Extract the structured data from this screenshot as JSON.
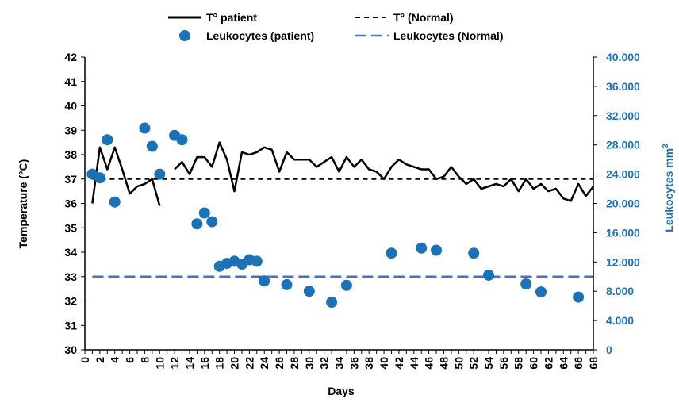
{
  "colors": {
    "patient_temp_line": "#000000",
    "normal_temp_line": "#000000",
    "leukocytes_patient": "#1a72b8",
    "leukocytes_normal": "#4472c4",
    "right_axis": "#1a72b8"
  },
  "chart_data": {
    "type": "line",
    "xlabel": "Days",
    "ylabel_left": "Temperature (°C)",
    "ylabel_right_main": "Leukocytes mm",
    "ylabel_right_sup": "3",
    "xlim": [
      0,
      68
    ],
    "ylim_left": [
      30,
      42
    ],
    "ylim_right": [
      0,
      40000
    ],
    "x_ticks": [
      "0",
      "2",
      "4",
      "6",
      "8",
      "10",
      "12",
      "14",
      "16",
      "18",
      "20",
      "22",
      "24",
      "26",
      "28",
      "30",
      "32",
      "34",
      "36",
      "38",
      "40",
      "42",
      "44",
      "46",
      "48",
      "50",
      "52",
      "54",
      "56",
      "58",
      "60",
      "62",
      "64",
      "66",
      "68"
    ],
    "y_left_ticks": [
      "30",
      "31",
      "32",
      "33",
      "34",
      "35",
      "36",
      "37",
      "38",
      "39",
      "40",
      "41",
      "42"
    ],
    "y_right_ticks": [
      "0",
      "4.000",
      "8.000",
      "12.000",
      "16.000",
      "20.000",
      "24.000",
      "28.000",
      "32.000",
      "36.000",
      "40.000"
    ],
    "legend": [
      "T° patient",
      "T° (Normal)",
      "Leukocytes (patient)",
      "Leukocytes (Normal)"
    ],
    "legend_position": "top",
    "grid": false,
    "series": [
      {
        "name": "T° patient",
        "axis": "left",
        "style": "solid-line",
        "segments": [
          [
            [
              1,
              36.0
            ],
            [
              2,
              38.3
            ],
            [
              3,
              37.4
            ],
            [
              4,
              38.3
            ],
            [
              5,
              37.4
            ],
            [
              6,
              36.4
            ],
            [
              7,
              36.7
            ],
            [
              8,
              36.8
            ],
            [
              9,
              37.0
            ],
            [
              10,
              35.9
            ]
          ],
          [
            [
              12,
              37.4
            ],
            [
              13,
              37.7
            ],
            [
              14,
              37.2
            ],
            [
              15,
              37.9
            ],
            [
              16,
              37.9
            ],
            [
              17,
              37.5
            ],
            [
              18,
              38.5
            ],
            [
              19,
              37.8
            ],
            [
              20,
              36.5
            ],
            [
              21,
              38.1
            ],
            [
              22,
              38.0
            ],
            [
              23,
              38.1
            ],
            [
              24,
              38.3
            ],
            [
              25,
              38.2
            ],
            [
              26,
              37.3
            ],
            [
              27,
              38.1
            ],
            [
              28,
              37.8
            ],
            [
              29,
              37.8
            ],
            [
              30,
              37.8
            ],
            [
              31,
              37.5
            ],
            [
              32,
              37.7
            ],
            [
              33,
              37.9
            ],
            [
              34,
              37.3
            ],
            [
              35,
              37.9
            ],
            [
              36,
              37.5
            ],
            [
              37,
              37.8
            ],
            [
              38,
              37.4
            ],
            [
              39,
              37.3
            ],
            [
              40,
              37.0
            ],
            [
              41,
              37.5
            ],
            [
              42,
              37.8
            ],
            [
              43,
              37.6
            ],
            [
              44,
              37.5
            ],
            [
              45,
              37.4
            ],
            [
              46,
              37.4
            ],
            [
              47,
              37.0
            ],
            [
              48,
              37.1
            ],
            [
              49,
              37.5
            ],
            [
              50,
              37.1
            ],
            [
              51,
              36.8
            ],
            [
              52,
              37.0
            ],
            [
              53,
              36.6
            ],
            [
              54,
              36.7
            ],
            [
              55,
              36.8
            ],
            [
              56,
              36.7
            ],
            [
              57,
              37.0
            ],
            [
              58,
              36.5
            ],
            [
              59,
              37.0
            ],
            [
              60,
              36.6
            ],
            [
              61,
              36.8
            ],
            [
              62,
              36.5
            ],
            [
              63,
              36.6
            ],
            [
              64,
              36.2
            ],
            [
              65,
              36.1
            ],
            [
              66,
              36.8
            ],
            [
              67,
              36.3
            ],
            [
              68,
              36.7
            ]
          ]
        ]
      },
      {
        "name": "T° (Normal)",
        "axis": "left",
        "style": "dashed-line",
        "values": [
          [
            1,
            37
          ],
          [
            68,
            37
          ]
        ]
      },
      {
        "name": "Leukocytes (patient)",
        "axis": "right",
        "style": "markers",
        "values": [
          [
            1,
            24000
          ],
          [
            2,
            23500
          ],
          [
            3,
            28700
          ],
          [
            4,
            20200
          ],
          [
            8,
            30300
          ],
          [
            9,
            27800
          ],
          [
            10,
            24000
          ],
          [
            12,
            29300
          ],
          [
            13,
            28700
          ],
          [
            15,
            17200
          ],
          [
            16,
            18700
          ],
          [
            17,
            17500
          ],
          [
            18,
            11400
          ],
          [
            19,
            11800
          ],
          [
            20,
            12100
          ],
          [
            21,
            11700
          ],
          [
            22,
            12300
          ],
          [
            23,
            12100
          ],
          [
            24,
            9400
          ],
          [
            27,
            8900
          ],
          [
            30,
            8000
          ],
          [
            33,
            6500
          ],
          [
            35,
            8800
          ],
          [
            41,
            13200
          ],
          [
            45,
            13900
          ],
          [
            47,
            13600
          ],
          [
            52,
            13200
          ],
          [
            54,
            10200
          ],
          [
            59,
            9000
          ],
          [
            61,
            7900
          ],
          [
            66,
            7200
          ]
        ]
      },
      {
        "name": "Leukocytes (Normal)",
        "axis": "right",
        "style": "long-dash-line",
        "values": [
          [
            1,
            10000
          ],
          [
            68,
            10000
          ]
        ]
      }
    ]
  }
}
